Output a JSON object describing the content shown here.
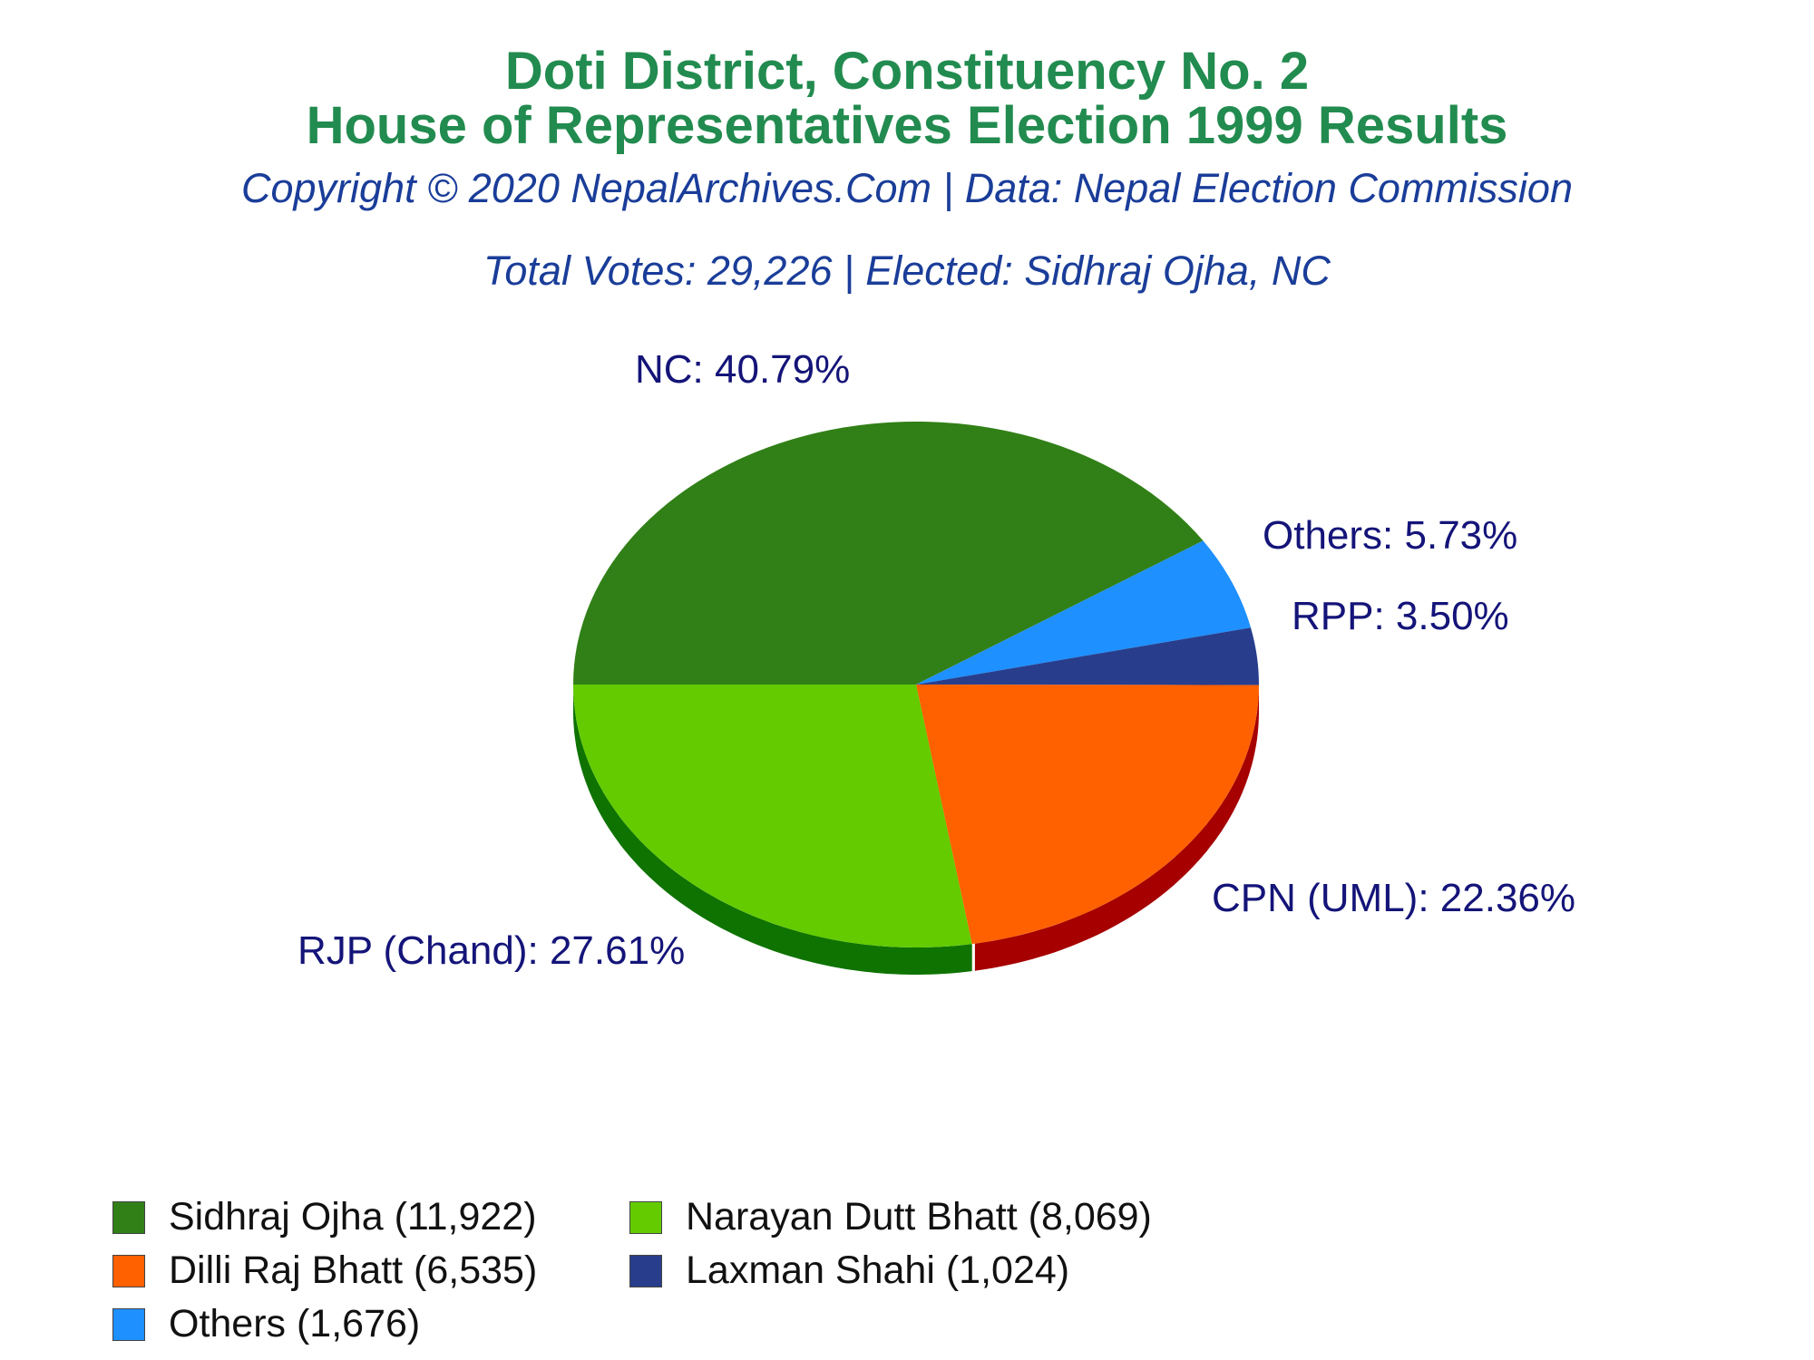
{
  "header": {
    "title_line1": "Doti District, Constituency No. 2",
    "title_line2": "House of Representatives Election 1999 Results",
    "copyright": "Copyright © 2020 NepalArchives.Com | Data: Nepal Election Commission",
    "summary": "Total Votes: 29,226 | Elected: Sidhraj Ojha, NC"
  },
  "chart_data": {
    "type": "pie",
    "title": "Doti District, Constituency No. 2 House of Representatives Election 1999 Results",
    "total_votes": 29226,
    "slices": [
      {
        "party": "NC",
        "candidate": "Sidhraj Ojha",
        "votes": 11922,
        "percent": 40.79,
        "label": "NC: 40.79%",
        "legend": "Sidhraj Ojha (11,922)",
        "color": "#318017",
        "side_color": "#1f5a0e"
      },
      {
        "party": "Others",
        "candidate": "Others",
        "votes": 1676,
        "percent": 5.73,
        "label": "Others: 5.73%",
        "legend": "Others (1,676)",
        "color": "#1e90ff",
        "side_color": "#1466b8"
      },
      {
        "party": "RPP",
        "candidate": "Laxman Shahi",
        "votes": 1024,
        "percent": 3.5,
        "label": "RPP: 3.50%",
        "legend": "Laxman Shahi (1,024)",
        "color": "#283e8c",
        "side_color": "#1a2a60"
      },
      {
        "party": "CPN (UML)",
        "candidate": "Dilli Raj Bhatt",
        "votes": 6535,
        "percent": 22.36,
        "label": "CPN (UML): 22.36%",
        "legend": "Dilli Raj Bhatt (6,535)",
        "color": "#ff6000",
        "side_color": "#a60000"
      },
      {
        "party": "RJP (Chand)",
        "candidate": "Narayan Dutt Bhatt",
        "votes": 8069,
        "percent": 27.61,
        "label": "RJP (Chand): 27.61%",
        "legend": "Narayan Dutt Bhatt (8,069)",
        "color": "#63cb00",
        "side_color": "#0e7300"
      }
    ],
    "legend_position": "bottom"
  }
}
